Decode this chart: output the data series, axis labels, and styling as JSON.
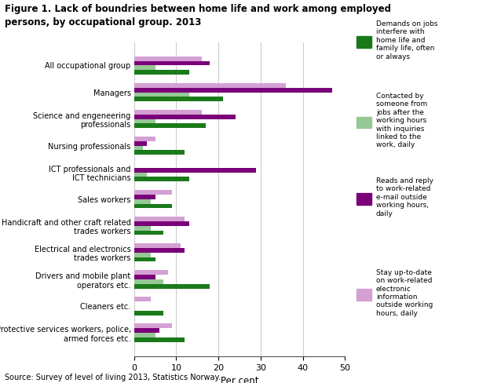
{
  "title_line1": "Figure 1. Lack of boundries between home life and work among employed",
  "title_line2": "persons, by occupational group. 2013",
  "source": "Source: Survey of level of living 2013, Statistics Norway.",
  "xlabel": "Per cent",
  "categories": [
    "All occupational group",
    "Managers",
    "Science and engeneering\nprofessionals",
    "Nursing professionals",
    "ICT professionals and\nICT technicians",
    "Sales workers",
    "Handicraft and other craft related\ntrades workers",
    "Electrical and electronics\ntrades workers",
    "Drivers and mobile plant\noperators etc.",
    "Cleaners etc.",
    "Protective services workers, police,\narmed forces etc."
  ],
  "series": {
    "green": [
      13,
      21,
      17,
      12,
      13,
      9,
      7,
      5,
      18,
      7,
      12
    ],
    "light_green": [
      5,
      13,
      5,
      2,
      3,
      4,
      4,
      4,
      7,
      0,
      5
    ],
    "purple": [
      18,
      47,
      24,
      3,
      29,
      5,
      13,
      12,
      5,
      0,
      6
    ],
    "light_purple": [
      16,
      36,
      16,
      5,
      0,
      9,
      12,
      11,
      8,
      4,
      9
    ]
  },
  "colors": {
    "green": "#1a7a1a",
    "light_green": "#96c896",
    "purple": "#7a007a",
    "light_purple": "#d4a0d4"
  },
  "legend_labels": [
    "Demands on jobs\ninterfere with\nhome life and\nfamily life, often\nor always",
    "Contacted by\nsomeone from\njobs after the\nworking hours\nwith inquiries\nlinked to the\nwork, daily",
    "Reads and reply\nto work-related\ne-mail outside\nworking hours,\ndaily",
    "Stay up-to-date\non work-related\nelectronic\ninformation\noutside working\nhours, daily"
  ],
  "xlim": [
    0,
    50
  ],
  "xticks": [
    0,
    10,
    20,
    30,
    40,
    50
  ]
}
